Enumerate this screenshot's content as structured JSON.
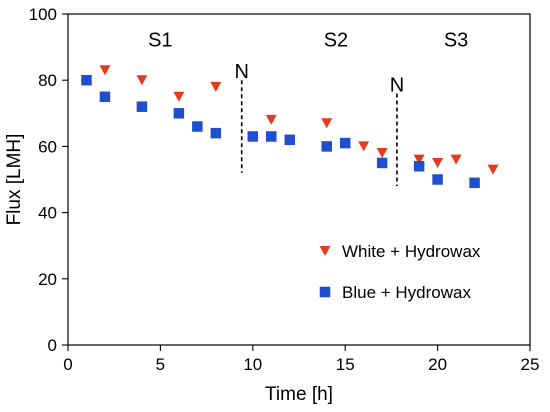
{
  "chart_data": {
    "type": "scatter",
    "xlabel": "Time [h]",
    "ylabel": "Flux [LMH]",
    "xlim": [
      0,
      25
    ],
    "ylim": [
      0,
      100
    ],
    "xticks": [
      0,
      5,
      10,
      15,
      20,
      25
    ],
    "yticks": [
      0,
      20,
      40,
      60,
      80,
      100
    ],
    "grid": false,
    "legend_position": "lower-right",
    "series": [
      {
        "name": "White + Hydrowax",
        "marker": "triangle-down",
        "color": "#e53a1e",
        "x": [
          2,
          4,
          6,
          8,
          11,
          14,
          16,
          17,
          19,
          20,
          21,
          23
        ],
        "y": [
          83,
          80,
          75,
          78,
          68,
          67,
          60,
          58,
          56,
          55,
          56,
          53
        ]
      },
      {
        "name": "Blue + Hydrowax",
        "marker": "square",
        "color": "#1f4fcf",
        "x": [
          1,
          2,
          4,
          6,
          7,
          8,
          10,
          11,
          12,
          14,
          15,
          17,
          19,
          20,
          22
        ],
        "y": [
          80,
          75,
          72,
          70,
          66,
          64,
          63,
          63,
          62,
          60,
          61,
          55,
          54,
          50,
          49
        ]
      }
    ],
    "annotations": {
      "stages": [
        {
          "label": "S1",
          "x": 5,
          "y": 92
        },
        {
          "label": "S2",
          "x": 14.5,
          "y": 92
        },
        {
          "label": "S3",
          "x": 21,
          "y": 92
        }
      ],
      "markers": [
        {
          "label": "N",
          "x": 9.4,
          "y_top": 80,
          "y_bottom": 52
        },
        {
          "label": "N",
          "x": 17.8,
          "y_top": 76,
          "y_bottom": 48
        }
      ]
    }
  }
}
